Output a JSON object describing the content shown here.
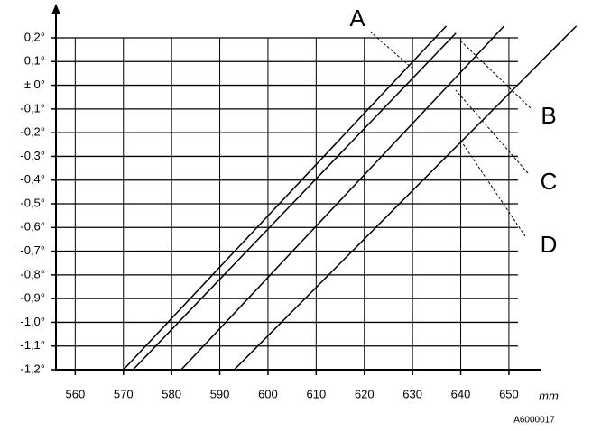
{
  "chart_data": {
    "type": "line",
    "x_label": "mm",
    "annotation": "A6000017",
    "xlim": [
      556,
      652
    ],
    "ylim": [
      -1.2,
      0.2
    ],
    "xticks": [
      560,
      570,
      580,
      590,
      600,
      610,
      620,
      630,
      640,
      650
    ],
    "yticks": [
      {
        "value": 0.2,
        "label": "0,2°"
      },
      {
        "value": 0.1,
        "label": "0,1°"
      },
      {
        "value": 0,
        "label": "± 0°"
      },
      {
        "value": -0.1,
        "label": "-0,1°"
      },
      {
        "value": -0.2,
        "label": "-0,2°"
      },
      {
        "value": -0.3,
        "label": "-0,3°"
      },
      {
        "value": -0.4,
        "label": "-0,4°"
      },
      {
        "value": -0.5,
        "label": "-0,5°"
      },
      {
        "value": -0.6,
        "label": "-0,6°"
      },
      {
        "value": -0.7,
        "label": "-0,7°"
      },
      {
        "value": -0.8,
        "label": "-0,8°"
      },
      {
        "value": -0.9,
        "label": "-0,9°"
      },
      {
        "value": -1.0,
        "label": "-1,0°"
      },
      {
        "value": -1.1,
        "label": "-1,1°"
      },
      {
        "value": -1.2,
        "label": "-1,2°"
      }
    ],
    "grid": true,
    "series": [
      {
        "name": "A",
        "color": "#000000",
        "x": [
          570,
          637
        ],
        "values": [
          -1.2,
          0.25
        ]
      },
      {
        "name": "B",
        "color": "#000000",
        "x": [
          572,
          639
        ],
        "values": [
          -1.2,
          0.22
        ]
      },
      {
        "name": "C",
        "color": "#000000",
        "x": [
          582,
          649
        ],
        "values": [
          -1.2,
          0.25
        ]
      },
      {
        "name": "D",
        "color": "#000000",
        "x": [
          593,
          664
        ],
        "values": [
          -1.2,
          0.25
        ]
      }
    ]
  }
}
